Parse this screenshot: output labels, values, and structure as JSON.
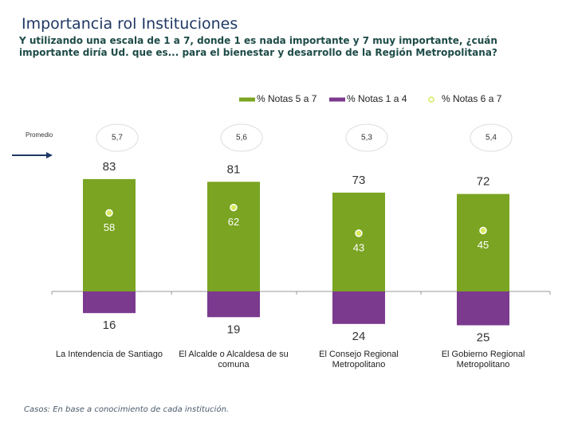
{
  "chart_data": {
    "type": "diverging-bar",
    "title": "Importancia rol Instituciones",
    "subtitle": "Y utilizando una escala de 1 a 7, donde 1 es nada importante y 7 muy importante, ¿cuán importante diría Ud. que es... para el bienestar y desarrollo de la Región Metropolitana?",
    "categories": [
      "La Intendencia de Santiago",
      "El Alcalde o Alcaldesa de su comuna",
      "El Consejo Regional Metropolitano",
      "El Gobierno Regional Metropolitano"
    ],
    "series": [
      {
        "name": "% Notas 5 a 7",
        "color": "#7aa421",
        "values": [
          83,
          81,
          73,
          72
        ]
      },
      {
        "name": "% Notas 1 a 4",
        "color": "#7b3a8e",
        "values": [
          16,
          19,
          24,
          25
        ]
      },
      {
        "name": "% Notas 6 a 7",
        "color": "#d7ea5c",
        "values": [
          58,
          62,
          43,
          45
        ]
      }
    ],
    "averages": {
      "name": "Promedio",
      "values": [
        5.7,
        5.6,
        5.3,
        5.4
      ],
      "value_labels": [
        "5,7",
        "5,6",
        "5,3",
        "5,4"
      ]
    },
    "footnote": "Casos: En base a conocimiento de cada institución."
  }
}
